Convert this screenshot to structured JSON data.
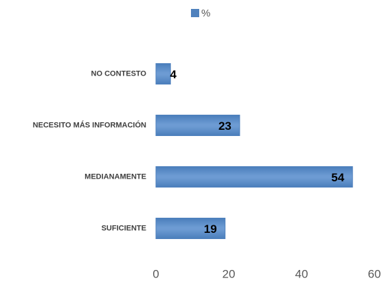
{
  "chart_data": {
    "type": "bar",
    "orientation": "horizontal",
    "categories": [
      "NO CONTESTO",
      "NECESITO MÁS INFORMACIÓN",
      "MEDIANAMENTE",
      "SUFICIENTE"
    ],
    "series": [
      {
        "name": "%",
        "color": "#4f81bd",
        "values": [
          4,
          23,
          54,
          19
        ]
      }
    ],
    "xlim": [
      0,
      60
    ],
    "xticks": [
      0,
      20,
      40,
      60
    ],
    "grid": false,
    "legend": "top"
  }
}
